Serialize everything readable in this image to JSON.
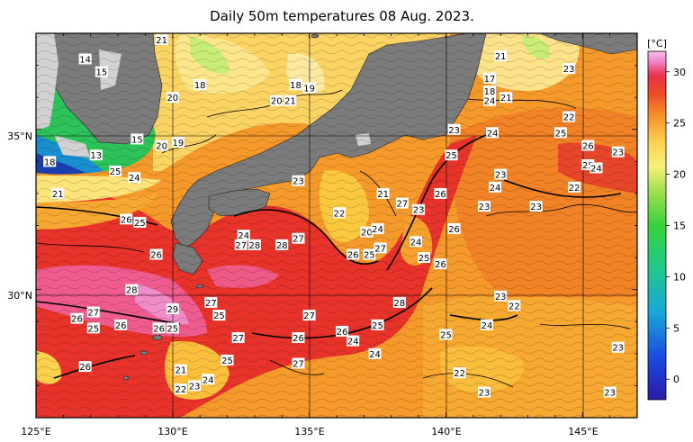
{
  "title": "Daily 50m temperatures 08 Aug. 2023.",
  "colorbar": {
    "unit": "[°C]",
    "ticks": [
      30,
      25,
      20,
      15,
      10,
      5,
      0
    ],
    "min": -2,
    "max": 32
  },
  "axes": {
    "x_ticks": [
      "125°E",
      "130°E",
      "135°E",
      "140°E",
      "145°E"
    ],
    "y_ticks": [
      "35°N",
      "30°N"
    ],
    "lon_range": [
      125,
      147
    ],
    "lat_range": [
      26,
      38
    ]
  },
  "colors": {
    "land": "#7b7b7b",
    "no_data": "#d0d0d0",
    "hot": "#e8262a",
    "warm": "#f59a2a",
    "mild": "#fde28a",
    "cool": "#9be26c",
    "cold": "#1a7ad8"
  },
  "isotherm_labels": [
    {
      "text": "21",
      "lon": 129.6,
      "lat": 37.8
    },
    {
      "text": "14",
      "lon": 126.8,
      "lat": 37.2
    },
    {
      "text": "15",
      "lon": 127.4,
      "lat": 36.8
    },
    {
      "text": "18",
      "lon": 131.0,
      "lat": 36.4
    },
    {
      "text": "20",
      "lon": 130.0,
      "lat": 36.0
    },
    {
      "text": "18",
      "lon": 134.5,
      "lat": 36.4
    },
    {
      "text": "19",
      "lon": 135.0,
      "lat": 36.3
    },
    {
      "text": "20",
      "lon": 133.8,
      "lat": 35.9
    },
    {
      "text": "21",
      "lon": 134.3,
      "lat": 35.9
    },
    {
      "text": "21",
      "lon": 142.0,
      "lat": 37.3
    },
    {
      "text": "23",
      "lon": 144.5,
      "lat": 36.9
    },
    {
      "text": "17",
      "lon": 141.6,
      "lat": 36.6
    },
    {
      "text": "18",
      "lon": 141.6,
      "lat": 36.2
    },
    {
      "text": "24",
      "lon": 141.6,
      "lat": 35.9
    },
    {
      "text": "21",
      "lon": 142.2,
      "lat": 36.0
    },
    {
      "text": "22",
      "lon": 144.5,
      "lat": 35.4
    },
    {
      "text": "25",
      "lon": 144.2,
      "lat": 34.9
    },
    {
      "text": "23",
      "lon": 140.3,
      "lat": 35.0
    },
    {
      "text": "24",
      "lon": 141.7,
      "lat": 34.9
    },
    {
      "text": "18",
      "lon": 125.5,
      "lat": 34.0
    },
    {
      "text": "13",
      "lon": 127.2,
      "lat": 34.2
    },
    {
      "text": "15",
      "lon": 128.7,
      "lat": 34.7
    },
    {
      "text": "20",
      "lon": 129.6,
      "lat": 34.5
    },
    {
      "text": "19",
      "lon": 130.2,
      "lat": 34.6
    },
    {
      "text": "25",
      "lon": 127.9,
      "lat": 33.7
    },
    {
      "text": "24",
      "lon": 128.6,
      "lat": 33.5
    },
    {
      "text": "21",
      "lon": 125.8,
      "lat": 33.0
    },
    {
      "text": "23",
      "lon": 134.6,
      "lat": 33.4
    },
    {
      "text": "21",
      "lon": 137.7,
      "lat": 33.0
    },
    {
      "text": "22",
      "lon": 136.1,
      "lat": 32.4
    },
    {
      "text": "27",
      "lon": 138.4,
      "lat": 32.7
    },
    {
      "text": "23",
      "lon": 139.0,
      "lat": 32.5
    },
    {
      "text": "26",
      "lon": 139.8,
      "lat": 33.0
    },
    {
      "text": "25",
      "lon": 140.2,
      "lat": 34.2
    },
    {
      "text": "26",
      "lon": 145.2,
      "lat": 34.5
    },
    {
      "text": "23",
      "lon": 146.3,
      "lat": 34.3
    },
    {
      "text": "25",
      "lon": 145.2,
      "lat": 33.9
    },
    {
      "text": "24",
      "lon": 145.5,
      "lat": 33.8
    },
    {
      "text": "23",
      "lon": 142.0,
      "lat": 33.6
    },
    {
      "text": "24",
      "lon": 141.8,
      "lat": 33.2
    },
    {
      "text": "23",
      "lon": 141.4,
      "lat": 32.6
    },
    {
      "text": "23",
      "lon": 143.3,
      "lat": 32.6
    },
    {
      "text": "22",
      "lon": 144.7,
      "lat": 33.2
    },
    {
      "text": "26",
      "lon": 128.3,
      "lat": 32.2
    },
    {
      "text": "25",
      "lon": 128.8,
      "lat": 32.1
    },
    {
      "text": "26",
      "lon": 129.4,
      "lat": 31.1
    },
    {
      "text": "24",
      "lon": 132.6,
      "lat": 31.7
    },
    {
      "text": "27",
      "lon": 132.5,
      "lat": 31.4
    },
    {
      "text": "28",
      "lon": 133.0,
      "lat": 31.4
    },
    {
      "text": "28",
      "lon": 134.0,
      "lat": 31.4
    },
    {
      "text": "27",
      "lon": 134.6,
      "lat": 31.6
    },
    {
      "text": "20",
      "lon": 137.1,
      "lat": 31.8
    },
    {
      "text": "24",
      "lon": 137.5,
      "lat": 31.9
    },
    {
      "text": "26",
      "lon": 136.6,
      "lat": 31.1
    },
    {
      "text": "25",
      "lon": 137.2,
      "lat": 31.1
    },
    {
      "text": "27",
      "lon": 137.6,
      "lat": 31.3
    },
    {
      "text": "24",
      "lon": 138.9,
      "lat": 31.5
    },
    {
      "text": "25",
      "lon": 139.2,
      "lat": 31.0
    },
    {
      "text": "26",
      "lon": 139.8,
      "lat": 30.8
    },
    {
      "text": "26",
      "lon": 140.3,
      "lat": 31.9
    },
    {
      "text": "28",
      "lon": 128.5,
      "lat": 30.0
    },
    {
      "text": "27",
      "lon": 131.4,
      "lat": 29.6
    },
    {
      "text": "29",
      "lon": 130.0,
      "lat": 29.4
    },
    {
      "text": "25",
      "lon": 131.7,
      "lat": 29.2
    },
    {
      "text": "28",
      "lon": 138.3,
      "lat": 29.6
    },
    {
      "text": "27",
      "lon": 135.0,
      "lat": 29.2
    },
    {
      "text": "23",
      "lon": 142.0,
      "lat": 29.8
    },
    {
      "text": "22",
      "lon": 142.5,
      "lat": 29.5
    },
    {
      "text": "26",
      "lon": 126.5,
      "lat": 29.1
    },
    {
      "text": "27",
      "lon": 127.1,
      "lat": 29.3
    },
    {
      "text": "25",
      "lon": 127.1,
      "lat": 28.8
    },
    {
      "text": "26",
      "lon": 128.1,
      "lat": 28.9
    },
    {
      "text": "26",
      "lon": 129.5,
      "lat": 28.8
    },
    {
      "text": "25",
      "lon": 130.0,
      "lat": 28.8
    },
    {
      "text": "25",
      "lon": 137.5,
      "lat": 28.9
    },
    {
      "text": "26",
      "lon": 136.2,
      "lat": 28.7
    },
    {
      "text": "24",
      "lon": 136.6,
      "lat": 28.4
    },
    {
      "text": "24",
      "lon": 141.5,
      "lat": 28.9
    },
    {
      "text": "25",
      "lon": 140.0,
      "lat": 28.6
    },
    {
      "text": "27",
      "lon": 132.4,
      "lat": 28.5
    },
    {
      "text": "26",
      "lon": 134.6,
      "lat": 28.5
    },
    {
      "text": "23",
      "lon": 146.3,
      "lat": 28.2
    },
    {
      "text": "24",
      "lon": 137.4,
      "lat": 28.0
    },
    {
      "text": "25",
      "lon": 132.0,
      "lat": 27.8
    },
    {
      "text": "26",
      "lon": 126.8,
      "lat": 27.6
    },
    {
      "text": "27",
      "lon": 134.6,
      "lat": 27.7
    },
    {
      "text": "21",
      "lon": 130.3,
      "lat": 27.5
    },
    {
      "text": "24",
      "lon": 131.3,
      "lat": 27.2
    },
    {
      "text": "22",
      "lon": 130.3,
      "lat": 26.9
    },
    {
      "text": "23",
      "lon": 130.8,
      "lat": 27.0
    },
    {
      "text": "22",
      "lon": 140.5,
      "lat": 27.4
    },
    {
      "text": "23",
      "lon": 141.4,
      "lat": 26.8
    },
    {
      "text": "23",
      "lon": 146.0,
      "lat": 26.8
    }
  ]
}
